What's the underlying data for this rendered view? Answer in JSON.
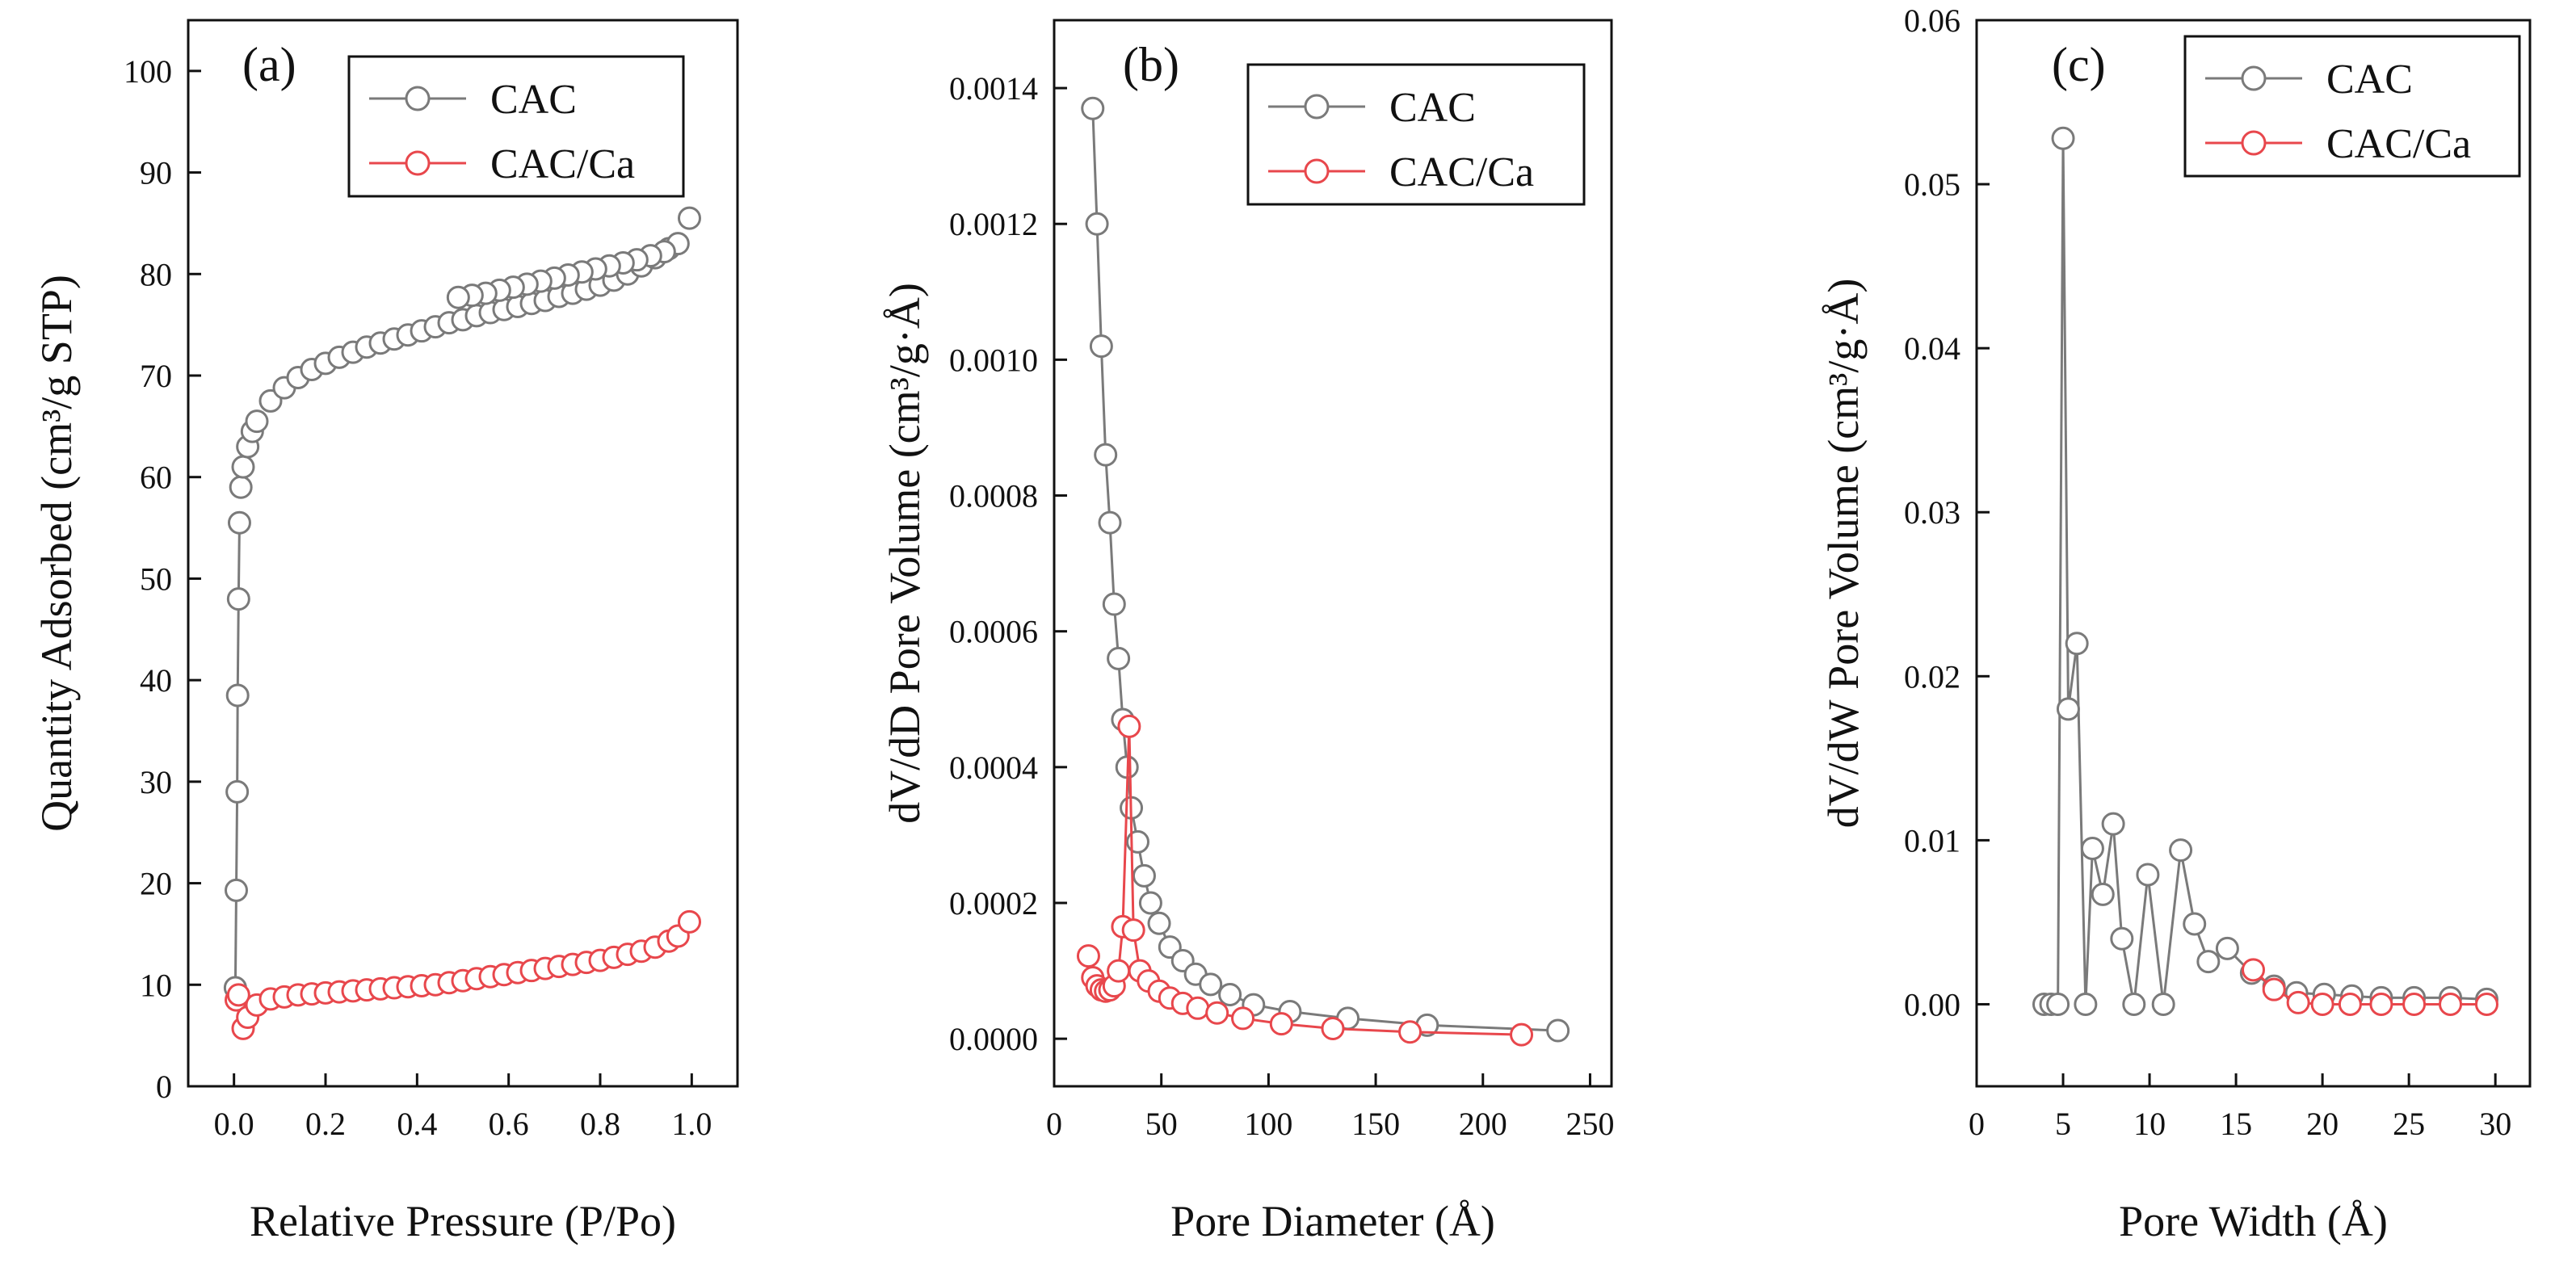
{
  "chart_data": [
    {
      "type": "scatter",
      "panel": "(a)",
      "xlabel": "Relative Pressure (P/Po)",
      "ylabel": "Quantity Adsorbed (cm³/g STP)",
      "xlim": [
        -0.1,
        1.1
      ],
      "ylim": [
        0,
        105
      ],
      "xticks": [
        0.0,
        0.2,
        0.4,
        0.6,
        0.8,
        1.0
      ],
      "xtick_labels": [
        "0.0",
        "0.2",
        "0.4",
        "0.6",
        "0.8",
        "1.0"
      ],
      "yticks": [
        0,
        10,
        20,
        30,
        40,
        50,
        60,
        70,
        80,
        90,
        100
      ],
      "ytick_labels": [
        "0",
        "10",
        "20",
        "30",
        "40",
        "50",
        "60",
        "70",
        "80",
        "90",
        "100"
      ],
      "legend": [
        "CAC",
        "CAC/Ca"
      ],
      "legend_position": "top-right",
      "series": [
        {
          "name": "CAC",
          "color": "#7a7a7a",
          "x": [
            0.003,
            0.005,
            0.007,
            0.008,
            0.01,
            0.012,
            0.015,
            0.02,
            0.03,
            0.04,
            0.05,
            0.08,
            0.11,
            0.14,
            0.17,
            0.2,
            0.23,
            0.26,
            0.29,
            0.32,
            0.35,
            0.38,
            0.41,
            0.44,
            0.47,
            0.5,
            0.53,
            0.56,
            0.59,
            0.62,
            0.65,
            0.68,
            0.71,
            0.74,
            0.77,
            0.8,
            0.83,
            0.86,
            0.89,
            0.92,
            0.95,
            0.995,
            0.97,
            0.94,
            0.91,
            0.88,
            0.85,
            0.82,
            0.79,
            0.76,
            0.73,
            0.7,
            0.67,
            0.64,
            0.61,
            0.58,
            0.55,
            0.52,
            0.49
          ],
          "y": [
            9.7,
            19.3,
            29.0,
            38.5,
            48.0,
            55.5,
            59.0,
            61.0,
            63.0,
            64.5,
            65.5,
            67.5,
            68.8,
            69.8,
            70.6,
            71.2,
            71.8,
            72.3,
            72.8,
            73.2,
            73.6,
            74.0,
            74.4,
            74.8,
            75.2,
            75.5,
            75.9,
            76.2,
            76.5,
            76.8,
            77.1,
            77.4,
            77.8,
            78.1,
            78.5,
            78.9,
            79.4,
            80.0,
            80.8,
            81.6,
            82.5,
            85.5,
            83.0,
            82.2,
            81.8,
            81.4,
            81.1,
            80.8,
            80.5,
            80.2,
            79.9,
            79.6,
            79.3,
            79.0,
            78.7,
            78.4,
            78.1,
            77.9,
            77.7
          ]
        },
        {
          "name": "CAC/Ca",
          "color": "#e8474c",
          "x": [
            0.005,
            0.01,
            0.02,
            0.03,
            0.05,
            0.08,
            0.11,
            0.14,
            0.17,
            0.2,
            0.23,
            0.26,
            0.29,
            0.32,
            0.35,
            0.38,
            0.41,
            0.44,
            0.47,
            0.5,
            0.53,
            0.56,
            0.59,
            0.62,
            0.65,
            0.68,
            0.71,
            0.74,
            0.77,
            0.8,
            0.83,
            0.86,
            0.89,
            0.92,
            0.95,
            0.97,
            0.995
          ],
          "y": [
            8.5,
            9.0,
            5.7,
            6.8,
            8.0,
            8.6,
            8.8,
            9.0,
            9.1,
            9.2,
            9.3,
            9.4,
            9.5,
            9.6,
            9.7,
            9.8,
            9.9,
            10.0,
            10.2,
            10.4,
            10.6,
            10.8,
            11.0,
            11.2,
            11.4,
            11.6,
            11.8,
            12.0,
            12.2,
            12.4,
            12.7,
            13.0,
            13.3,
            13.7,
            14.3,
            14.8,
            16.2
          ]
        }
      ]
    },
    {
      "type": "line",
      "panel": "(b)",
      "xlabel": "Pore Diameter (Å)",
      "ylabel": "dV/dD Pore Volume (cm³/g·Å)",
      "xlim": [
        0,
        260
      ],
      "ylim": [
        -7e-05,
        0.0015
      ],
      "xticks": [
        0,
        50,
        100,
        150,
        200,
        250
      ],
      "xtick_labels": [
        "0",
        "50",
        "100",
        "150",
        "200",
        "250"
      ],
      "yticks": [
        0.0,
        0.0002,
        0.0004,
        0.0006,
        0.0008,
        0.001,
        0.0012,
        0.0014
      ],
      "ytick_labels": [
        "0.0000",
        "0.0002",
        "0.0004",
        "0.0006",
        "0.0008",
        "0.0010",
        "0.0012",
        "0.0014"
      ],
      "legend": [
        "CAC",
        "CAC/Ca"
      ],
      "legend_position": "top-right",
      "series": [
        {
          "name": "CAC",
          "color": "#7a7a7a",
          "x": [
            18,
            20,
            22,
            24,
            26,
            28,
            30,
            32,
            34,
            36,
            39,
            42,
            45,
            49,
            54,
            60,
            66,
            73,
            82,
            93,
            110,
            137,
            174,
            235
          ],
          "y": [
            0.00137,
            0.0012,
            0.00102,
            0.00086,
            0.00076,
            0.00064,
            0.00056,
            0.00047,
            0.0004,
            0.00034,
            0.00029,
            0.00024,
            0.0002,
            0.00017,
            0.000135,
            0.000115,
            9.5e-05,
            8e-05,
            6.5e-05,
            5e-05,
            4e-05,
            3e-05,
            2e-05,
            1.2e-05
          ]
        },
        {
          "name": "CAC/Ca",
          "color": "#e8474c",
          "x": [
            16,
            18,
            20,
            22,
            24,
            26,
            28,
            30,
            32,
            35,
            37,
            40,
            44,
            49,
            54,
            60,
            67,
            76,
            88,
            106,
            130,
            166,
            218
          ],
          "y": [
            0.000122,
            9e-05,
            7.8e-05,
            7.2e-05,
            7e-05,
            7.2e-05,
            7.8e-05,
            0.0001,
            0.000165,
            0.00046,
            0.00016,
            0.0001,
            8.5e-05,
            7e-05,
            6e-05,
            5.2e-05,
            4.5e-05,
            3.8e-05,
            3e-05,
            2.2e-05,
            1.5e-05,
            1e-05,
            6e-06
          ]
        }
      ]
    },
    {
      "type": "line",
      "panel": "(c)",
      "xlabel": "Pore Width (Å)",
      "ylabel": "dV/dW Pore Volume (cm³/g·Å)",
      "xlim": [
        0,
        32
      ],
      "ylim": [
        -0.005,
        0.06
      ],
      "xticks": [
        0,
        5,
        10,
        15,
        20,
        25,
        30
      ],
      "xtick_labels": [
        "0",
        "5",
        "10",
        "15",
        "20",
        "25",
        "30"
      ],
      "yticks": [
        0.0,
        0.01,
        0.02,
        0.03,
        0.04,
        0.05,
        0.06
      ],
      "ytick_labels": [
        "0.00",
        "0.01",
        "0.02",
        "0.03",
        "0.04",
        "0.05",
        "0.06"
      ],
      "legend": [
        "CAC",
        "CAC/Ca"
      ],
      "legend_position": "top-right",
      "series": [
        {
          "name": "CAC",
          "color": "#7a7a7a",
          "x": [
            3.9,
            4.3,
            4.7,
            5.0,
            5.3,
            5.8,
            6.3,
            6.7,
            7.3,
            7.9,
            8.4,
            9.1,
            9.9,
            10.8,
            11.8,
            12.6,
            13.4,
            14.5,
            15.9,
            17.2,
            18.5,
            20.1,
            21.7,
            23.4,
            25.3,
            27.4,
            29.5
          ],
          "y": [
            0.0,
            0.0,
            0.0,
            0.0528,
            0.018,
            0.022,
            0.0,
            0.0095,
            0.0067,
            0.011,
            0.004,
            0.0,
            0.0079,
            0.0,
            0.0094,
            0.0049,
            0.0026,
            0.0034,
            0.0019,
            0.0011,
            0.0007,
            0.0006,
            0.0005,
            0.0004,
            0.0004,
            0.0004,
            0.0003
          ]
        },
        {
          "name": "CAC/Ca",
          "color": "#e8474c",
          "x": [
            16.0,
            17.2,
            18.6,
            20.0,
            21.6,
            23.4,
            25.3,
            27.4,
            29.5
          ],
          "y": [
            0.0021,
            0.0009,
            0.0001,
            0.0,
            0.0,
            0.0,
            0.0,
            0.0,
            0.0
          ]
        }
      ]
    }
  ]
}
